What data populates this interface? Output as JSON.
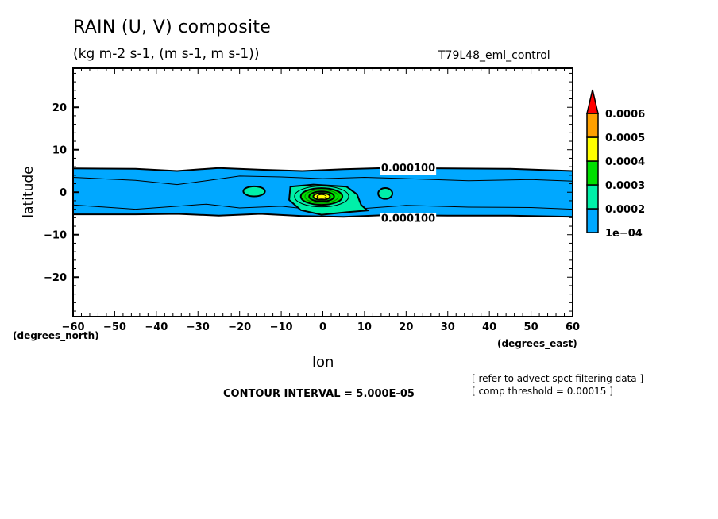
{
  "header": {
    "title": "RAIN (U, V) composite",
    "units": "(kg m-2 s-1, (m s-1, m s-1))",
    "run_name": "T79L48_eml_control"
  },
  "footer": {
    "contour_interval": "CONTOUR INTERVAL = 5.000E-05",
    "note_line1": "[ refer to advect spct filtering data ]",
    "note_line2": "[ comp threshold = 0.00015 ]"
  },
  "chart_data": {
    "type": "heatmap",
    "title": "RAIN (U, V) composite",
    "subtitle": "(kg m-2 s-1, (m s-1, m s-1))",
    "xlabel": "lon",
    "ylabel": "latitude",
    "x_units": "(degrees_east)",
    "y_units": "(degrees_north)",
    "xlim": [
      -60,
      60
    ],
    "ylim": [
      -29.3,
      29.2
    ],
    "x_ticks": [
      -60,
      -50,
      -40,
      -30,
      -20,
      -10,
      0,
      10,
      20,
      30,
      40,
      50,
      60
    ],
    "y_ticks": [
      -20,
      -10,
      0,
      10,
      20
    ],
    "grid": false,
    "colorbar": {
      "placement": "right",
      "levels": [
        "1e-04",
        "0.0002",
        "0.0003",
        "0.0004",
        "0.0005",
        "0.0006"
      ],
      "colors": [
        "#00a8ff",
        "#00f0a8",
        "#00e000",
        "#ffff00",
        "#ffa000",
        "#ff0000"
      ],
      "extend": "max"
    },
    "contour_labels": [
      {
        "text": "0.000100",
        "lon": 14,
        "lat": 5.8
      },
      {
        "text": "0.000100",
        "lon": 14,
        "lat": -6.0
      }
    ],
    "band": {
      "level": 0.0001,
      "north_edge": [
        [
          -60,
          5.6
        ],
        [
          -45,
          5.5
        ],
        [
          -35,
          5.0
        ],
        [
          -25,
          5.7
        ],
        [
          -15,
          5.3
        ],
        [
          -5,
          5.0
        ],
        [
          5,
          5.4
        ],
        [
          15,
          5.7
        ],
        [
          30,
          5.6
        ],
        [
          45,
          5.5
        ],
        [
          60,
          5.0
        ]
      ],
      "south_edge": [
        [
          -60,
          -5.2
        ],
        [
          -45,
          -5.2
        ],
        [
          -35,
          -5.1
        ],
        [
          -25,
          -5.5
        ],
        [
          -15,
          -5.1
        ],
        [
          -5,
          -5.6
        ],
        [
          5,
          -5.8
        ],
        [
          15,
          -5.4
        ],
        [
          30,
          -5.5
        ],
        [
          45,
          -5.5
        ],
        [
          60,
          -5.8
        ]
      ]
    },
    "inner_contours": [
      [
        [
          -60,
          3.5
        ],
        [
          -45,
          2.8
        ],
        [
          -35,
          1.8
        ],
        [
          -28,
          2.7
        ],
        [
          -20,
          3.8
        ],
        [
          -10,
          3.6
        ],
        [
          0,
          3.2
        ],
        [
          10,
          3.5
        ],
        [
          20,
          3.2
        ],
        [
          35,
          2.7
        ],
        [
          50,
          3.0
        ],
        [
          60,
          2.6
        ]
      ],
      [
        [
          -60,
          -3.0
        ],
        [
          -45,
          -4.0
        ],
        [
          -35,
          -3.3
        ],
        [
          -28,
          -2.8
        ],
        [
          -20,
          -3.7
        ],
        [
          -10,
          -3.3
        ],
        [
          0,
          -4.3
        ],
        [
          10,
          -3.8
        ],
        [
          20,
          -3.1
        ],
        [
          35,
          -3.5
        ],
        [
          50,
          -3.6
        ],
        [
          60,
          -4.0
        ]
      ]
    ],
    "features": [
      {
        "name": "west-blob",
        "lon": -16.5,
        "lat": 0.2,
        "max_level": 0.0002
      },
      {
        "name": "central-maximum",
        "lon": -0.3,
        "lat": -1.0,
        "max_level": 0.0005
      },
      {
        "name": "east-blob",
        "lon": 15,
        "lat": -0.3,
        "max_level": 0.0002
      }
    ]
  }
}
